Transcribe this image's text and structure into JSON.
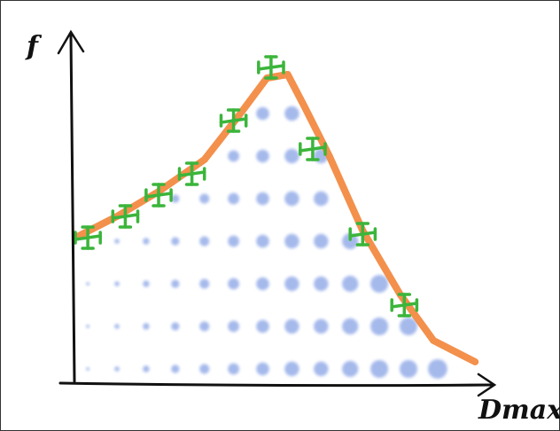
{
  "chart_data": {
    "type": "line",
    "x_label": "Dmax",
    "y_label": "f",
    "xlim": [
      0,
      100
    ],
    "ylim": [
      0,
      100
    ],
    "curve": {
      "color": "#f28a42",
      "x": [
        0,
        10,
        20,
        31,
        39,
        46,
        51,
        55,
        61,
        69,
        78,
        86,
        96
      ],
      "y": [
        41,
        47,
        54,
        63,
        75,
        86,
        87,
        78,
        64,
        43,
        25,
        12,
        6
      ]
    },
    "points": {
      "color": "#3bb53b",
      "x": [
        3,
        12,
        20,
        28,
        38,
        47,
        57,
        69,
        79
      ],
      "y": [
        41,
        47,
        53,
        59,
        74,
        89,
        66,
        42,
        22
      ],
      "xerr": [
        3,
        3,
        3,
        3,
        3,
        3,
        3,
        3,
        3
      ],
      "yerr": [
        3,
        3,
        3,
        3,
        3,
        3,
        3,
        3,
        3
      ]
    },
    "dots": {
      "color": "#5b80dc",
      "x": [
        3,
        3,
        3,
        10,
        10,
        10,
        10,
        17,
        17,
        17,
        17,
        24,
        24,
        24,
        24,
        24,
        31,
        31,
        31,
        31,
        31,
        38,
        38,
        38,
        38,
        38,
        38,
        45,
        45,
        45,
        45,
        45,
        45,
        45,
        52,
        52,
        52,
        52,
        52,
        52,
        52,
        59,
        59,
        59,
        59,
        59,
        59,
        66,
        66,
        66,
        66,
        73,
        73,
        73,
        80,
        80,
        87
      ],
      "y": [
        4,
        16,
        28,
        4,
        16,
        28,
        40,
        4,
        16,
        28,
        40,
        4,
        16,
        28,
        40,
        52,
        4,
        16,
        28,
        40,
        52,
        4,
        16,
        28,
        40,
        52,
        64,
        4,
        16,
        28,
        40,
        52,
        64,
        76,
        4,
        16,
        28,
        40,
        52,
        64,
        76,
        4,
        16,
        28,
        40,
        52,
        64,
        4,
        16,
        28,
        40,
        4,
        16,
        28,
        4,
        16,
        4
      ],
      "sizes": [
        1,
        1,
        1,
        2,
        2,
        2,
        2,
        3,
        3,
        3,
        3,
        4,
        4,
        4,
        4,
        4,
        5,
        5,
        5,
        5,
        5,
        6,
        6,
        6,
        6,
        6,
        6,
        7,
        7,
        7,
        7,
        7,
        7,
        7,
        8,
        8,
        8,
        8,
        8,
        8,
        8,
        8,
        8,
        8,
        8,
        8,
        8,
        9,
        9,
        9,
        9,
        10,
        10,
        10,
        10,
        10,
        11
      ]
    }
  }
}
